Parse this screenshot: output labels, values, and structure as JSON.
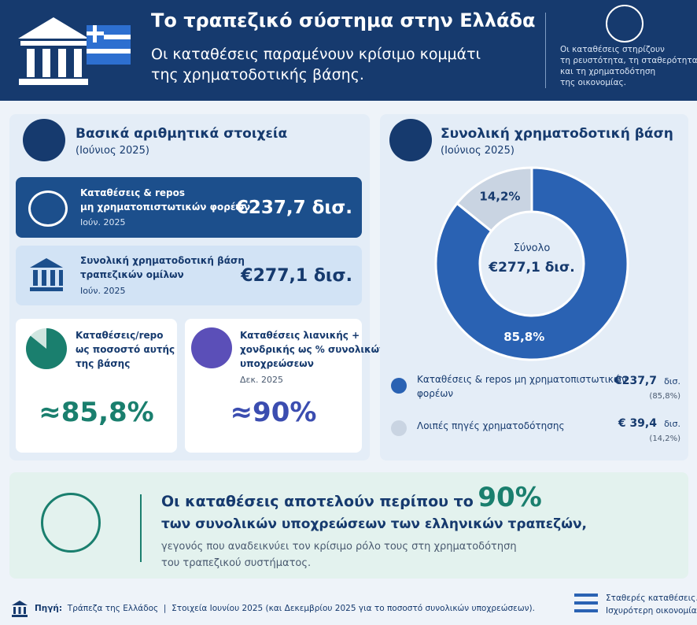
{
  "header": {
    "title": "Το τραπεζικό σύστημα στην Ελλάδα",
    "subtitle_lines": [
      "Οι καταθέσεις παραμένουν κρίσιμο κομμάτι",
      "της χρηματοδοτικής βάσης."
    ],
    "note_lines": [
      "Οι καταθέσεις στηρίζουν",
      "τη ρευστότητα, τη σταθερότητα",
      "και τη χρηματοδότηση",
      "της οικονομίας."
    ]
  },
  "key_figures": {
    "title": "Βασικά αριθμητικά στοιχεία",
    "period": "(Ιούνιος 2025)",
    "cards": [
      {
        "label_lines": [
          "Καταθέσεις & repos",
          "μη χρηματοπιστωτικών φορέων"
        ],
        "date": "Ιούν. 2025",
        "value": "€237,7 δισ."
      },
      {
        "label_lines": [
          "Συνολική χρηματοδοτική βάση",
          "τραπεζικών ομίλων"
        ],
        "date": "Ιούν. 2025",
        "value": "€277,1 δισ."
      }
    ],
    "tiles": [
      {
        "label_lines": [
          "Καταθέσεις/repo",
          "ως ποσοστό αυτής",
          "της βάσης"
        ],
        "value": "≈85,8%"
      },
      {
        "label_lines": [
          "Καταθέσεις λιανικής +",
          "χονδρικής ως % συνολικών",
          "υποχρεώσεων"
        ],
        "date": "Δεκ. 2025",
        "value": "≈90%"
      }
    ]
  },
  "chart_data": {
    "type": "pie",
    "title": "Συνολική χρηματοδοτική βάση",
    "subtitle": "(Ιούνιος 2025)",
    "center_label": "Σύνολο",
    "center_value": "€277,1 δισ.",
    "categories": [
      "Καταθέσεις & repos μη χρηματοπιστωτικών φορέων",
      "Λοιπές πηγές χρηματοδότησης"
    ],
    "values": [
      85.8,
      14.2
    ],
    "value_labels": [
      "85,8%",
      "14,2%"
    ],
    "colors": [
      "#2a62b3",
      "#c9d4e2"
    ],
    "amounts": [
      "€237,7",
      "€ 39,4"
    ],
    "amount_unit": "δισ.",
    "amount_shares": [
      "(85,8%)",
      "(14,2%)"
    ]
  },
  "highlight": {
    "lead": "Οι καταθέσεις αποτελούν περίπου το",
    "figure": "90%",
    "line2": "των συνολικών υποχρεώσεων των ελληνικών τραπεζών,",
    "body_lines": [
      "γεγονός που αναδεικνύει τον κρίσιμο ρόλο τους στη χρηματοδότηση",
      "του τραπεζικού συστήματος."
    ]
  },
  "footer": {
    "source_label": "Πηγή:",
    "source": "Τράπεζα της Ελλάδος",
    "separator": "|",
    "note": "Στοιχεία Ιουνίου 2025 (και Δεκεμβρίου 2025 για το ποσοστό συνολικών υποχρεώσεων).",
    "tagline_lines": [
      "Σταθερές καταθέσεις.",
      "Ισχυρότερη οικονομία."
    ]
  }
}
